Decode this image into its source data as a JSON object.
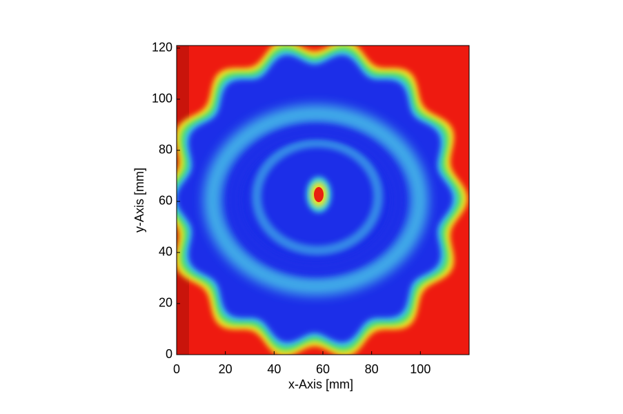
{
  "chart_data": {
    "type": "heatmap",
    "xlabel": "x-Axis [mm]",
    "ylabel": "y-Axis [mm]",
    "xlim": [
      0,
      120
    ],
    "ylim": [
      0,
      121
    ],
    "xticks": [
      0,
      20,
      40,
      60,
      80,
      100
    ],
    "yticks": [
      0,
      20,
      40,
      60,
      80,
      100,
      120
    ]
  }
}
